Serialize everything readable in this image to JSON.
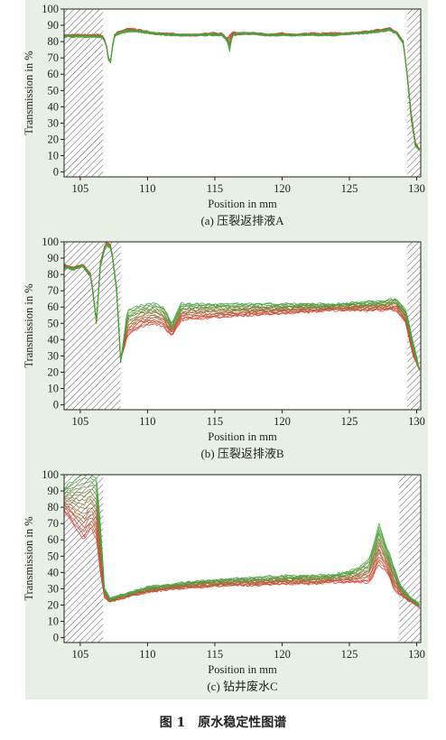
{
  "figure": {
    "caption": "图 1　原水稳定性图谱",
    "panel_color": "#e8efe4"
  },
  "colors": {
    "early_curve": "#e53a2f",
    "late_curve": "#3cab3c",
    "plot_bg": "#ffffff",
    "hatch": "#555555"
  },
  "chart_data": [
    {
      "type": "line",
      "subcaption": "(a) 压裂返排液A",
      "xlabel": "Position in mm",
      "ylabel": "Transmission in %",
      "xlim": [
        103.8,
        130.3
      ],
      "ylim": [
        -3,
        100
      ],
      "xticks": [
        105,
        110,
        115,
        120,
        125,
        130
      ],
      "yticks": [
        0,
        10,
        20,
        30,
        40,
        50,
        60,
        70,
        80,
        90,
        100
      ],
      "grid": false,
      "hatched_regions": [
        [
          103.8,
          106.7
        ],
        [
          129.3,
          130.3
        ]
      ],
      "series": [
        {
          "color_role": "early",
          "x": [
            103.8,
            106.6,
            106.9,
            107.2,
            107.5,
            107.9,
            108.5,
            109.5,
            110.5,
            111.5,
            112.5,
            113.5,
            114.5,
            115.5,
            115.9,
            116.3,
            116.6,
            117,
            118,
            119,
            120,
            121,
            122,
            123,
            124,
            125,
            126,
            127,
            128,
            128.5,
            129,
            129.3,
            129.6,
            129.9,
            130.3
          ],
          "y": [
            84,
            84,
            80,
            64,
            84,
            86,
            88,
            87,
            85,
            85,
            84,
            84,
            85,
            85,
            82,
            86,
            85,
            85,
            85,
            84,
            85,
            84,
            85,
            85,
            85,
            85,
            86,
            87,
            88,
            86,
            80,
            60,
            35,
            18,
            12
          ]
        },
        {
          "color_role": "late",
          "x": [
            103.8,
            106.6,
            106.9,
            107.2,
            107.5,
            107.9,
            108.5,
            109.5,
            110.5,
            111.5,
            112.5,
            113.5,
            114.5,
            115.5,
            115.9,
            116.1,
            116.3,
            116.6,
            117,
            118,
            119,
            120,
            121,
            122,
            123,
            124,
            125,
            126,
            127,
            128,
            128.5,
            129,
            129.3,
            129.6,
            129.9,
            130.3
          ],
          "y": [
            83,
            83,
            79,
            65,
            83,
            85,
            86,
            86,
            85,
            84,
            84,
            84,
            84,
            84,
            81,
            74,
            84,
            84,
            85,
            85,
            84,
            84,
            84,
            84,
            84,
            84,
            85,
            85,
            86,
            87,
            85,
            79,
            58,
            32,
            16,
            13
          ]
        }
      ]
    },
    {
      "type": "line",
      "subcaption": "(b) 压裂返排液B",
      "xlabel": "Position in mm",
      "ylabel": "Transmission in %",
      "xlim": [
        103.8,
        130.3
      ],
      "ylim": [
        -3,
        100
      ],
      "xticks": [
        105,
        110,
        115,
        120,
        125,
        130
      ],
      "yticks": [
        0,
        10,
        20,
        30,
        40,
        50,
        60,
        70,
        80,
        90,
        100
      ],
      "grid": false,
      "hatched_regions": [
        [
          103.8,
          108
        ],
        [
          129.3,
          130.3
        ]
      ],
      "series": [
        {
          "color_role": "early",
          "x": [
            103.8,
            104.5,
            105.2,
            105.8,
            106.2,
            106.5,
            106.9,
            107.3,
            107.7,
            108,
            108.5,
            109.5,
            110.5,
            111.2,
            111.8,
            112.5,
            114,
            116,
            118,
            120,
            122,
            124,
            126,
            127.5,
            128.5,
            129.2,
            129.7,
            130.3
          ],
          "y": [
            86,
            84,
            86,
            80,
            50,
            88,
            100,
            98,
            70,
            28,
            42,
            48,
            50,
            48,
            42,
            52,
            53,
            54,
            55,
            56,
            57,
            58,
            58,
            58,
            58,
            50,
            30,
            20
          ]
        },
        {
          "color_role": "late",
          "x": [
            103.8,
            104.5,
            105.2,
            105.8,
            106.2,
            106.5,
            106.9,
            107.3,
            107.7,
            108,
            108.5,
            109.5,
            110.5,
            111.2,
            111.8,
            112.5,
            114,
            116,
            118,
            120,
            122,
            124,
            126,
            127.5,
            128.5,
            129.2,
            129.7,
            130.3
          ],
          "y": [
            84,
            83,
            85,
            78,
            52,
            85,
            98,
            96,
            72,
            26,
            58,
            61,
            62,
            60,
            50,
            62,
            62,
            62,
            62,
            62,
            62,
            62,
            63,
            64,
            65,
            58,
            40,
            18
          ]
        }
      ]
    },
    {
      "type": "line",
      "subcaption": "(c) 钻井废水C",
      "xlabel": "Position in mm",
      "ylabel": "Transmission in %",
      "xlim": [
        103.8,
        130.3
      ],
      "ylim": [
        -3,
        100
      ],
      "xticks": [
        105,
        110,
        115,
        120,
        125,
        130
      ],
      "yticks": [
        0,
        10,
        20,
        30,
        40,
        50,
        60,
        70,
        80,
        90,
        100
      ],
      "grid": false,
      "hatched_regions": [
        [
          103.8,
          106.7
        ],
        [
          128.7,
          130.3
        ]
      ],
      "series": [
        {
          "color_role": "early",
          "x": [
            103.8,
            104.3,
            104.8,
            105.3,
            105.8,
            106.2,
            106.5,
            106.8,
            107.2,
            108,
            110,
            112,
            114,
            116,
            118,
            120,
            122,
            124,
            125.5,
            126.5,
            127.2,
            127.8,
            128.3,
            128.8,
            129.5,
            130.3
          ],
          "y": [
            78,
            72,
            65,
            60,
            68,
            60,
            40,
            25,
            22,
            24,
            28,
            30,
            31,
            32,
            32,
            33,
            33,
            34,
            34,
            34,
            45,
            40,
            30,
            26,
            22,
            18
          ]
        },
        {
          "color_role": "late",
          "x": [
            103.8,
            104.3,
            104.8,
            105.3,
            105.8,
            106.2,
            106.5,
            106.8,
            107.2,
            108,
            110,
            112,
            114,
            116,
            118,
            120,
            122,
            124,
            125.5,
            126.5,
            127.2,
            127.8,
            128.3,
            128.8,
            129.5,
            130.3
          ],
          "y": [
            92,
            95,
            98,
            100,
            100,
            98,
            70,
            30,
            24,
            26,
            31,
            33,
            35,
            36,
            37,
            38,
            38,
            39,
            42,
            48,
            70,
            55,
            44,
            32,
            25,
            20
          ]
        }
      ]
    }
  ]
}
